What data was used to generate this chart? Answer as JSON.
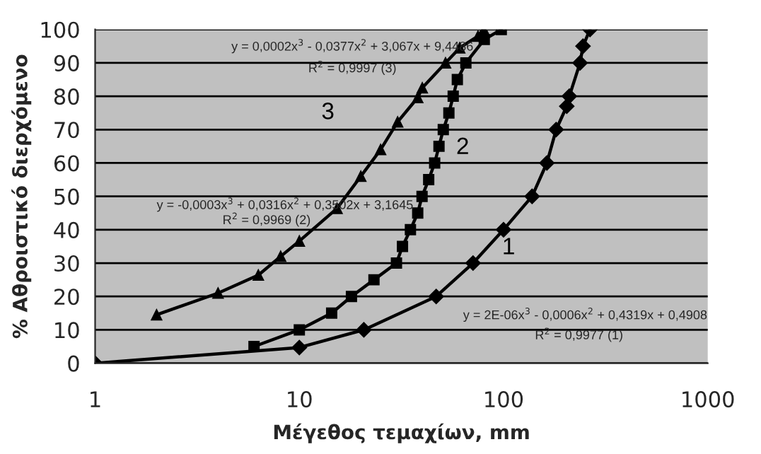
{
  "chart_data": {
    "type": "line",
    "xlabel": "Μέγεθος τεμαχίων, mm",
    "ylabel": "% Αθροιστικό διερχόμενο",
    "log": "x",
    "xlim": [
      1,
      1000
    ],
    "xticks": [
      1,
      10,
      100,
      1000
    ],
    "ylim": [
      0,
      100
    ],
    "yticks": [
      0,
      10,
      20,
      30,
      40,
      50,
      60,
      70,
      80,
      90,
      100
    ],
    "grid": "y",
    "legend": false,
    "series": [
      {
        "name": "1",
        "color": "#000000",
        "marker": "diamond",
        "x": [
          1,
          10,
          20.7,
          46.8,
          70.9,
          100,
          138,
          163,
          181,
          204,
          210,
          237,
          245,
          265
        ],
        "values": [
          0,
          4.7,
          10,
          20,
          30,
          40,
          50,
          60,
          70,
          77,
          80,
          90,
          95,
          100
        ]
      },
      {
        "name": "2",
        "color": "#000000",
        "marker": "square",
        "x": [
          6,
          10,
          14.4,
          18,
          23.2,
          29.9,
          32,
          35,
          38,
          39.9,
          43,
          46,
          48.3,
          50.7,
          54,
          56.7,
          59.4,
          65.4,
          80.5,
          97.5
        ],
        "values": [
          5,
          10,
          15,
          20,
          25,
          30,
          35,
          40,
          45,
          50,
          55,
          60,
          65,
          70,
          75,
          80,
          85,
          90,
          97,
          100
        ]
      },
      {
        "name": "3",
        "color": "#000000",
        "marker": "triangle",
        "x": [
          2,
          4,
          6.3,
          8.1,
          10,
          15.3,
          20,
          25,
          30.3,
          38,
          40,
          52,
          61,
          75,
          80
        ],
        "values": [
          14.5,
          21,
          26.4,
          32,
          36.6,
          46.4,
          56,
          64,
          72.3,
          79.6,
          82.5,
          90,
          94.5,
          98,
          100
        ]
      }
    ],
    "annotations": [
      "y = 0,0002x$^{3}$ - 0,0377x$^{2}$ + 3,067x + 9,4486",
      "R$^{2}$ = 0,9997 (3)",
      "y = -0,0003x$^{3}$ + 0,0316x$^{2}$ + 0,3502x + 3,1645",
      "R$^{2}$ = 0,9969 (2)",
      "y = 2E-06x$^{3}$ - 0,0006x$^{2}$ + 0,4319x + 0,4908",
      "R$^{2}$ = 0,9977 (1)"
    ]
  }
}
